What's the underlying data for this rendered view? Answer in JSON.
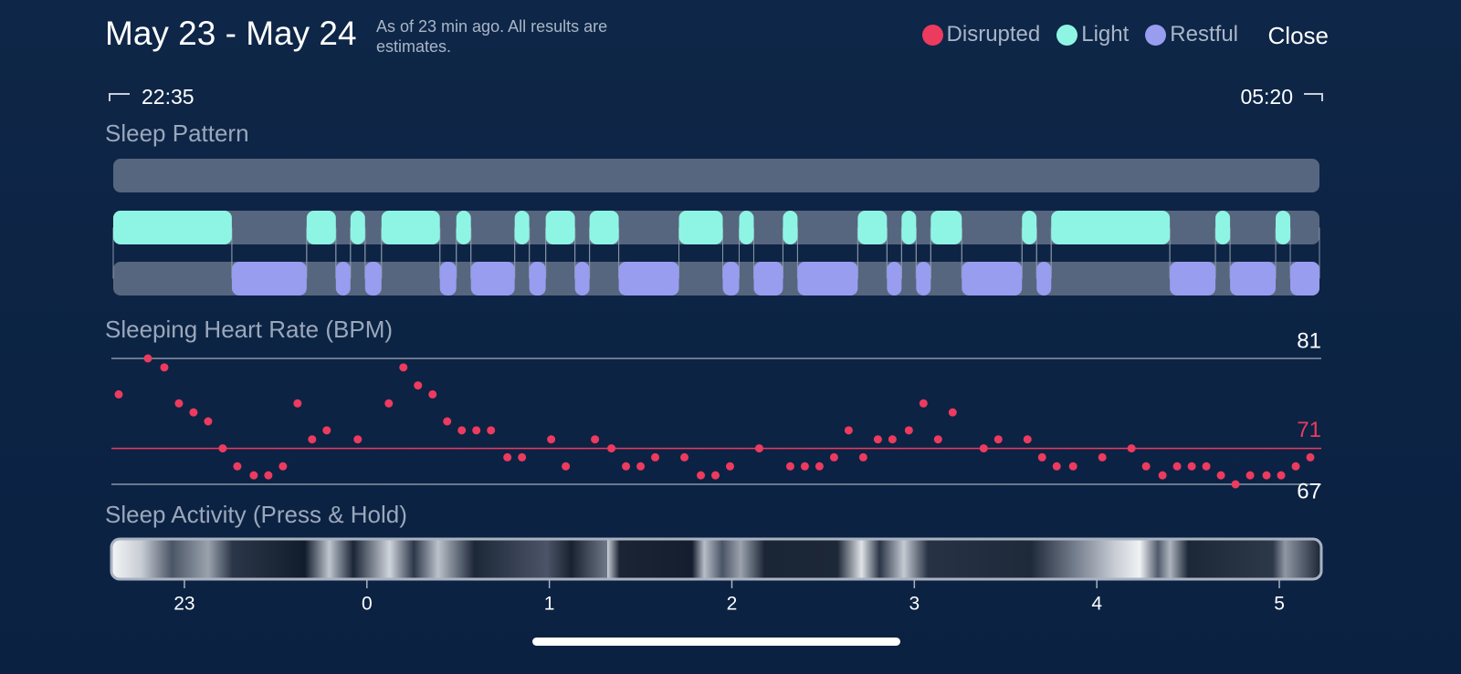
{
  "header": {
    "title": "May 23 - May 24",
    "subtitle": "As of 23 min ago. All results are estimates.",
    "close": "Close"
  },
  "chart_data": [
    {
      "type": "timeline",
      "title": "Sleep Pattern",
      "start_label": "22:35",
      "end_label": "05:20",
      "xlim": [
        -1.39,
        5.22
      ],
      "series": [
        {
          "name": "Disrupted",
          "color": "#ec3b5f",
          "segments": []
        },
        {
          "name": "Light",
          "color": "#8ef5e4",
          "segments": [
            [
              -1.39,
              -0.74
            ],
            [
              -0.33,
              -0.17
            ],
            [
              -0.09,
              -0.01
            ],
            [
              0.08,
              0.4
            ],
            [
              0.49,
              0.57
            ],
            [
              0.81,
              0.89
            ],
            [
              0.98,
              1.14
            ],
            [
              1.22,
              1.38
            ],
            [
              1.71,
              1.95
            ],
            [
              2.04,
              2.12
            ],
            [
              2.28,
              2.36
            ],
            [
              2.69,
              2.85
            ],
            [
              2.93,
              3.01
            ],
            [
              3.09,
              3.26
            ],
            [
              3.59,
              3.67
            ],
            [
              3.75,
              4.4
            ],
            [
              4.65,
              4.73
            ],
            [
              4.98,
              5.06
            ]
          ]
        },
        {
          "name": "Restful",
          "color": "#989df0",
          "segments": [
            [
              -0.74,
              -0.33
            ],
            [
              -0.17,
              -0.09
            ],
            [
              -0.01,
              0.08
            ],
            [
              0.4,
              0.49
            ],
            [
              0.57,
              0.81
            ],
            [
              0.89,
              0.98
            ],
            [
              1.14,
              1.22
            ],
            [
              1.38,
              1.71
            ],
            [
              1.95,
              2.04
            ],
            [
              2.12,
              2.28
            ],
            [
              2.36,
              2.69
            ],
            [
              2.85,
              2.93
            ],
            [
              3.01,
              3.09
            ],
            [
              3.26,
              3.59
            ],
            [
              3.67,
              3.75
            ],
            [
              4.4,
              4.65
            ],
            [
              4.73,
              4.98
            ],
            [
              5.06,
              5.22
            ]
          ]
        }
      ]
    },
    {
      "type": "scatter",
      "title": "Sleeping Heart Rate (BPM)",
      "color": "#ec3b5f",
      "xlim": [
        -1.39,
        5.22
      ],
      "ylim": [
        67,
        81
      ],
      "yticks": [
        67,
        81
      ],
      "average": 71,
      "average_color": "#ec3b5f",
      "x": [
        -1.36,
        -1.2,
        -1.11,
        -1.03,
        -0.95,
        -0.87,
        -0.79,
        -0.71,
        -0.62,
        -0.54,
        -0.46,
        -0.38,
        -0.3,
        -0.22,
        -0.05,
        0.12,
        0.2,
        0.28,
        0.36,
        0.44,
        0.52,
        0.6,
        0.68,
        0.77,
        0.85,
        1.01,
        1.09,
        1.25,
        1.34,
        1.42,
        1.5,
        1.58,
        1.74,
        1.83,
        1.91,
        1.99,
        2.15,
        2.32,
        2.4,
        2.48,
        2.56,
        2.64,
        2.72,
        2.8,
        2.88,
        2.97,
        3.05,
        3.13,
        3.21,
        3.38,
        3.46,
        3.62,
        3.7,
        3.78,
        3.87,
        4.03,
        4.19,
        4.27,
        4.36,
        4.44,
        4.52,
        4.6,
        4.68,
        4.76,
        4.84,
        4.93,
        5.01,
        5.09,
        5.17
      ],
      "values": [
        77,
        81,
        80,
        76,
        75,
        74,
        71,
        69,
        68,
        68,
        69,
        76,
        72,
        73,
        72,
        76,
        80,
        78,
        77,
        74,
        73,
        73,
        73,
        70,
        70,
        72,
        69,
        72,
        71,
        69,
        69,
        70,
        70,
        68,
        68,
        69,
        71,
        69,
        69,
        69,
        70,
        73,
        70,
        72,
        72,
        73,
        76,
        72,
        75,
        71,
        72,
        72,
        70,
        69,
        69,
        70,
        71,
        69,
        68,
        69,
        69,
        69,
        68,
        67,
        68,
        68,
        68,
        69,
        70
      ]
    },
    {
      "type": "activity",
      "title": "Sleep Activity (Press & Hold)",
      "xlim": [
        -1.39,
        5.22
      ],
      "xticks": [
        {
          "value": -1,
          "label": "23"
        },
        0,
        1,
        2,
        3,
        4,
        5
      ]
    }
  ]
}
